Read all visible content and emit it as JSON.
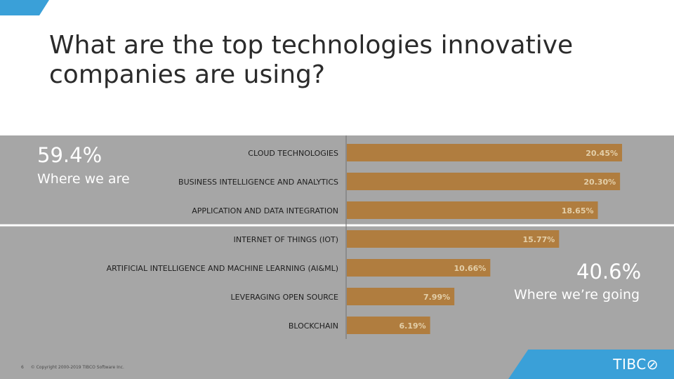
{
  "slide": {
    "title": "What are the top technologies innovative companies are using?",
    "callout_top": {
      "value": "59.4%",
      "label": "Where we are"
    },
    "callout_bottom": {
      "value": "40.6%",
      "label": "Where we’re going"
    },
    "footer": {
      "page_number": "6",
      "copyright": "© Copyright 2000-2019 TIBCO Software Inc."
    },
    "logo_text": "TIBC⊘",
    "colors": {
      "accent": "#3aa0d8",
      "bar": "#b07d3f",
      "panel": "#a6a6a6",
      "divider": "#ffffff"
    }
  },
  "chart_data": {
    "type": "bar",
    "orientation": "horizontal",
    "categories": [
      "CLOUD TECHNOLOGIES",
      "BUSINESS INTELLIGENCE AND ANALYTICS",
      "APPLICATION AND DATA INTEGRATION",
      "INTERNET OF THINGS (IOT)",
      "ARTIFICIAL INTELLIGENCE AND MACHINE LEARNING (AI&ML)",
      "LEVERAGING OPEN SOURCE",
      "BLOCKCHAIN"
    ],
    "values": [
      20.45,
      20.3,
      18.65,
      15.77,
      10.66,
      7.99,
      6.19
    ],
    "data_labels": [
      "20.45%",
      "20.30%",
      "18.65%",
      "15.77%",
      "10.66%",
      "7.99%",
      "6.19%"
    ],
    "xlim": [
      0,
      24
    ],
    "grid": false,
    "legend": "none"
  }
}
